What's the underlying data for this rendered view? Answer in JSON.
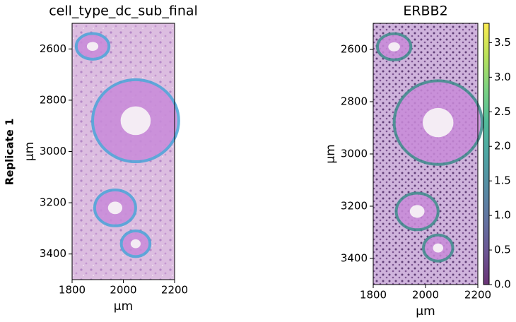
{
  "row_label": "Replicate 1",
  "chart_data": [
    {
      "type": "spatial",
      "title": "cell_type_dc_sub_final",
      "xlabel": "µm",
      "ylabel": "µm",
      "xlim": [
        1800,
        2200
      ],
      "ylim": [
        3500,
        2500
      ],
      "xticks": [
        1800,
        2000,
        2200
      ],
      "yticks": [
        2600,
        2800,
        3000,
        3200,
        3400
      ]
    },
    {
      "type": "spatial",
      "title": "ERBB2",
      "xlabel": "µm",
      "ylabel": "µm",
      "xlim": [
        1800,
        2200
      ],
      "ylim": [
        3500,
        2500
      ],
      "xticks": [
        1800,
        2000,
        2200
      ],
      "yticks": [
        2600,
        2800,
        3000,
        3200,
        3400
      ],
      "colorbar": {
        "colormap": "viridis",
        "lim": [
          0,
          3.78
        ],
        "ticks": [
          {
            "value": 0,
            "label": "0.0"
          },
          0.5,
          {
            "value": 1,
            "label": "1.0"
          },
          1.5,
          {
            "value": 2,
            "label": "2.0"
          },
          2.5,
          {
            "value": 3,
            "label": "3.0"
          },
          3.5
        ]
      }
    }
  ]
}
